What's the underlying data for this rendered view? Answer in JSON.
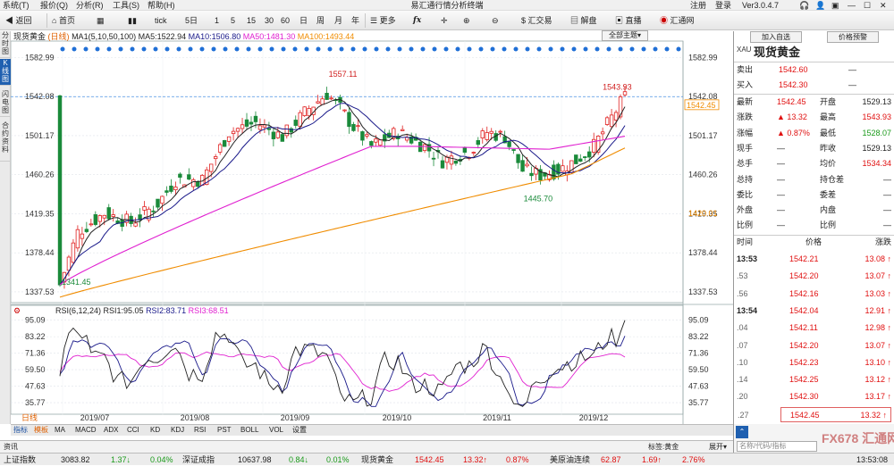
{
  "menu": {
    "items": [
      "系统(T)",
      "报价(Q)",
      "分析(R)",
      "工具(S)",
      "帮助(H)"
    ],
    "title": "易汇通行情分析终端",
    "login": "注册",
    "logout": "登录",
    "version": "Ver3.0.4.7"
  },
  "toolbar": {
    "back": "返回",
    "home": "首页",
    "tick": "tick",
    "periods": [
      "5日",
      "1",
      "5",
      "15",
      "30",
      "60",
      "日",
      "周",
      "月",
      "年"
    ],
    "more": "更多",
    "fx_label": "fx",
    "huijiaoyi": "汇交易",
    "jiepan": "解盘",
    "zhibo": "直播",
    "huitong": "汇通网"
  },
  "lefttabs": [
    "分时图",
    "K线图",
    "闪电图",
    "合约资料"
  ],
  "kline": {
    "name": "现货黄金",
    "period": "日线",
    "ma_legend": [
      {
        "t": "MA1(5,10,50,100)",
        "c": "#222222"
      },
      {
        "t": "MA5:1522.94",
        "c": "#222222"
      },
      {
        "t": "MA10:1506.80",
        "c": "#1a1a8a"
      },
      {
        "t": "MA50:1481.30",
        "c": "#e020d0"
      },
      {
        "t": "MA100:1493.44",
        "c": "#f08c00"
      }
    ],
    "subject_btn": "全部主题",
    "yticks": [
      "1582.99",
      "1542.08",
      "1501.17",
      "1460.26",
      "1419.35",
      "1378.44",
      "1337.53"
    ],
    "annotations": {
      "hi": "1557.11",
      "lo1": "1445.70",
      "lo2": "1341.45",
      "last": "1543.93",
      "right_cur": "1542.45",
      "right_ma": "1420.01"
    }
  },
  "rsi": {
    "legend": [
      {
        "t": "RSI(6,12,24)",
        "c": "#222222"
      },
      {
        "t": "RSI1:95.05",
        "c": "#222222"
      },
      {
        "t": "RSI2:83.71",
        "c": "#1a1a8a"
      },
      {
        "t": "RSI3:68.51",
        "c": "#e020d0"
      }
    ],
    "yticks": [
      "95.09",
      "83.22",
      "71.36",
      "59.50",
      "47.63",
      "35.77"
    ]
  },
  "xaxis": {
    "labels": [
      "2019/07",
      "2019/08",
      "2019/09",
      "2019/10",
      "2019/11",
      "2019/12"
    ],
    "period_label": "日线"
  },
  "bottomtabs": {
    "items": [
      "指标",
      "模板",
      "MA",
      "MACD",
      "ADX",
      "CCI",
      "KD",
      "KDJ",
      "RSI",
      "PST",
      "BOLL",
      "VOL",
      "设置"
    ]
  },
  "infobar": {
    "label": "资讯",
    "tag": "标签:黄金",
    "expand": "展开"
  },
  "right": {
    "btn_add": "加入自选",
    "btn_alert": "价格预警",
    "name": "现货黄金",
    "code": "XAU",
    "sell": {
      "label": "卖出",
      "value": "1542.60",
      "dash": "—"
    },
    "buy": {
      "label": "买入",
      "value": "1542.30",
      "dash": "—"
    },
    "stats": [
      {
        "l1": "最新",
        "v1": "1542.45",
        "c1": "red",
        "l2": "开盘",
        "v2": "1529.13",
        "c2": "dark"
      },
      {
        "l1": "涨跌",
        "v1": "13.32",
        "c1": "red",
        "l2": "最高",
        "v2": "1543.93",
        "c2": "red"
      },
      {
        "l1": "涨幅",
        "v1": "0.87%",
        "c1": "red",
        "l2": "最低",
        "v2": "1528.07",
        "c2": "green"
      },
      {
        "l1": "现手",
        "v1": "—",
        "c1": "dark",
        "l2": "昨收",
        "v2": "1529.13",
        "c2": "dark"
      },
      {
        "l1": "总手",
        "v1": "—",
        "c1": "dark",
        "l2": "均价",
        "v2": "1534.34",
        "c2": "red"
      },
      {
        "l1": "总持",
        "v1": "—",
        "c1": "dark",
        "l2": "持仓差",
        "v2": "—",
        "c2": "dark"
      },
      {
        "l1": "委比",
        "v1": "—",
        "c1": "dark",
        "l2": "委差",
        "v2": "—",
        "c2": "dark"
      },
      {
        "l1": "外盘",
        "v1": "—",
        "c1": "dark",
        "l2": "内盘",
        "v2": "—",
        "c2": "dark"
      },
      {
        "l1": "比例",
        "v1": "—",
        "c1": "dark",
        "l2": "比例",
        "v2": "—",
        "c2": "dark"
      }
    ],
    "ticks_header": {
      "time": "时间",
      "price": "价格",
      "change": "涨跌"
    },
    "ticks": [
      {
        "t": "13:53",
        "p": "1542.21",
        "c": "13.08"
      },
      {
        "t": ".53",
        "p": "1542.20",
        "c": "13.07"
      },
      {
        "t": ".56",
        "p": "1542.16",
        "c": "13.03"
      },
      {
        "t": "13:54",
        "p": "1542.04",
        "c": "12.91"
      },
      {
        "t": ".04",
        "p": "1542.11",
        "c": "12.98"
      },
      {
        "t": ".07",
        "p": "1542.20",
        "c": "13.07"
      },
      {
        "t": ".10",
        "p": "1542.23",
        "c": "13.10"
      },
      {
        "t": ".14",
        "p": "1542.25",
        "c": "13.12"
      },
      {
        "t": ".20",
        "p": "1542.30",
        "c": "13.17"
      },
      {
        "t": ".27",
        "p": "1542.45",
        "c": "13.32"
      }
    ],
    "search_placeholder": "名称/代码/指标"
  },
  "statusbar": {
    "items": [
      {
        "t": "上证指数",
        "c": "dark"
      },
      {
        "t": "3083.82",
        "c": "dark"
      },
      {
        "t": "1.37↓",
        "c": "green"
      },
      {
        "t": "0.04%",
        "c": "green"
      },
      {
        "t": "深证成指",
        "c": "dark"
      },
      {
        "t": "10637.98",
        "c": "dark"
      },
      {
        "t": "0.84↓",
        "c": "green"
      },
      {
        "t": "0.01%",
        "c": "green"
      },
      {
        "t": "现货黄金",
        "c": "dark"
      },
      {
        "t": "1542.45",
        "c": "red"
      },
      {
        "t": "13.32↑",
        "c": "red"
      },
      {
        "t": "0.87%",
        "c": "red"
      },
      {
        "t": "美原油连续",
        "c": "dark"
      },
      {
        "t": "62.87",
        "c": "red"
      },
      {
        "t": "1.69↑",
        "c": "red"
      },
      {
        "t": "2.76%",
        "c": "red"
      }
    ],
    "time": "13:53:08",
    "logo": "FX678 汇通网"
  }
}
